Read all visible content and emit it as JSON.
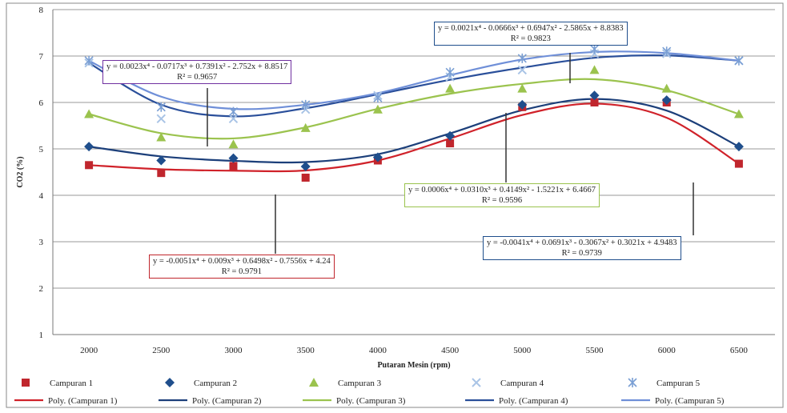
{
  "chart_data": {
    "type": "scatter",
    "title": "",
    "xlabel": "Putaran Mesin (rpm)",
    "ylabel": "CO2 (%)",
    "x": [
      2000,
      2500,
      3000,
      3500,
      4000,
      4500,
      5000,
      5500,
      6000,
      6500
    ],
    "xticks": [
      "2000",
      "2500",
      "3000",
      "3500",
      "4000",
      "4500",
      "5000",
      "5500",
      "6000",
      "6500"
    ],
    "ylim": [
      1,
      8
    ],
    "yticks": [
      "1",
      "2",
      "3",
      "4",
      "5",
      "6",
      "7",
      "8"
    ],
    "grid": "horizontal",
    "legend_position": "bottom",
    "series": [
      {
        "name": "Campuran 1",
        "marker": "square",
        "color": "#c0262d",
        "values": [
          4.65,
          4.48,
          4.63,
          4.38,
          4.75,
          5.12,
          5.9,
          6.0,
          6.0,
          4.68
        ]
      },
      {
        "name": "Campuran 2",
        "marker": "diamond",
        "color": "#1f4e8c",
        "values": [
          5.05,
          4.75,
          4.8,
          4.62,
          4.82,
          5.28,
          5.95,
          6.15,
          6.05,
          5.05
        ]
      },
      {
        "name": "Campuran 3",
        "marker": "triangle",
        "color": "#9bc34e",
        "values": [
          5.75,
          5.25,
          5.1,
          5.45,
          5.85,
          6.3,
          6.3,
          6.7,
          6.3,
          5.75
        ]
      },
      {
        "name": "Campuran 4",
        "marker": "x",
        "color": "#a9c4e6",
        "values": [
          6.85,
          5.65,
          5.65,
          5.85,
          6.15,
          6.55,
          6.7,
          7.05,
          7.05,
          6.9
        ]
      },
      {
        "name": "Campuran 5",
        "marker": "star",
        "color": "#7a9fd4",
        "values": [
          6.9,
          5.9,
          5.8,
          5.95,
          6.1,
          6.65,
          6.95,
          7.15,
          7.1,
          6.9
        ]
      }
    ],
    "trendlines": [
      {
        "name": "Poly. (Campuran 1)",
        "color": "#d0222a"
      },
      {
        "name": "Poly. (Campuran 2)",
        "color": "#1c3f7a"
      },
      {
        "name": "Poly. (Campuran 3)",
        "color": "#9bc34e"
      },
      {
        "name": "Poly. (Campuran 4)",
        "color": "#2a4f9a"
      },
      {
        "name": "Poly. (Campuran 5)",
        "color": "#6f8fd8"
      }
    ],
    "annotations": [
      {
        "series": "Campuran 1",
        "border": "#c0262d",
        "equation": "y = -0.0051x⁴ + 0.009x³ + 0.6498x² - 0.7556x + 4.24",
        "r2": "R² = 0.9791"
      },
      {
        "series": "Campuran 2",
        "border": "#1f4e8c",
        "equation": "y = -0.0041x⁴ + 0.0691x³ - 0.3067x² + 0.3021x + 4.9483",
        "r2": "R² = 0.9739"
      },
      {
        "series": "Campuran 3",
        "border": "#9bc34e",
        "equation": "y = 0.0006x⁴ + 0.0310x³ + 0.4149x² - 1.5221x + 6.4667",
        "r2": "R² = 0.9596"
      },
      {
        "series": "Campuran 4",
        "border": "#7030a0",
        "equation": "y = 0.0023x⁴ - 0.0717x³ + 0.7391x² - 2.752x + 8.8517",
        "r2": "R² = 0.9657"
      },
      {
        "series": "Campuran 5",
        "border": "#1f4e8c",
        "equation": "y = 0.0021x⁴ - 0.0666x³ + 0.6947x² - 2.5865x + 8.8383",
        "r2": "R² = 0.9823"
      }
    ]
  }
}
